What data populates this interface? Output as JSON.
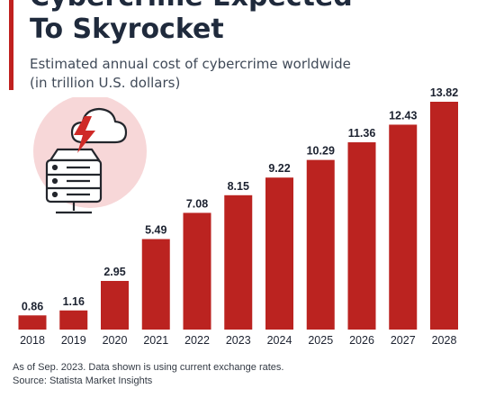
{
  "header": {
    "title_lines": [
      "Cybercrime Expected",
      "To Skyrocket"
    ],
    "subtitle_lines": [
      "Estimated annual cost of cybercrime worldwide",
      "(in trillion U.S. dollars)"
    ]
  },
  "illustration": {
    "icons": [
      "cloud-icon",
      "lightning-icon",
      "server-icon"
    ]
  },
  "footer": {
    "note": "As of Sep. 2023. Data shown is using current exchange rates.",
    "source": "Source: Statista Market Insights"
  },
  "colors": {
    "bar": "#bb2320",
    "accent": "#c0211f",
    "illustration_bg": "#f7d7d8",
    "text": "#1c2230"
  },
  "chart_data": {
    "type": "bar",
    "categories": [
      "2018",
      "2019",
      "2020",
      "2021",
      "2022",
      "2023",
      "2024",
      "2025",
      "2026",
      "2027",
      "2028"
    ],
    "values": [
      0.86,
      1.16,
      2.95,
      5.49,
      7.08,
      8.15,
      9.22,
      10.29,
      11.36,
      12.43,
      13.82
    ],
    "data_labels": [
      "0.86",
      "1.16",
      "2.95",
      "5.49",
      "7.08",
      "8.15",
      "9.22",
      "10.29",
      "11.36",
      "12.43",
      "13.82"
    ],
    "title": "Cybercrime Expected To Skyrocket",
    "subtitle": "Estimated annual cost of cybercrime worldwide (in trillion U.S. dollars)",
    "xlabel": "",
    "ylabel": "",
    "ylim": [
      0,
      14
    ],
    "grid": false,
    "legend": "none"
  }
}
